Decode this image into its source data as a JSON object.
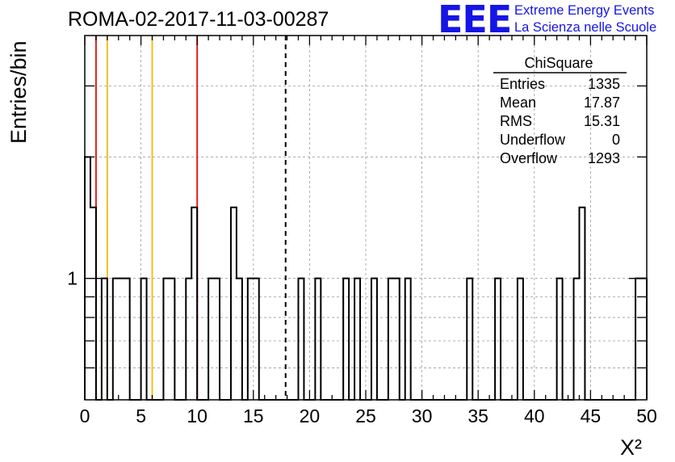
{
  "run_title": "ROMA-02-2017-11-03-00287",
  "logo": {
    "mark": "EEE",
    "line1": "Extreme Energy Events",
    "line2": "La Scienza nelle Scuole",
    "color": "#1515e6"
  },
  "stats": {
    "title": "ChiSquare",
    "rows": [
      {
        "label": "Entries",
        "value": "1335"
      },
      {
        "label": "Mean",
        "value": "17.87"
      },
      {
        "label": "RMS",
        "value": "15.31"
      },
      {
        "label": "Underflow",
        "value": "0"
      },
      {
        "label": "Overflow",
        "value": "1293"
      }
    ]
  },
  "chart_data": {
    "type": "histogram",
    "xlabel": "X²",
    "ylabel": "Entries/bin",
    "xlim": [
      0,
      50
    ],
    "ylim": [
      0.5,
      4
    ],
    "y_scale": "log",
    "y_tick_labels": [
      "1"
    ],
    "x_tick_labels": [
      "0",
      "5",
      "10",
      "15",
      "20",
      "25",
      "30",
      "35",
      "40",
      "45",
      "50"
    ],
    "grid": true,
    "bin_width": 0.5,
    "bins": [
      {
        "x": 0.0,
        "y": 2
      },
      {
        "x": 0.5,
        "y": 1.5
      },
      {
        "x": 1.5,
        "y": 1
      },
      {
        "x": 2.5,
        "y": 1
      },
      {
        "x": 3.0,
        "y": 1
      },
      {
        "x": 3.5,
        "y": 1
      },
      {
        "x": 5.0,
        "y": 1
      },
      {
        "x": 7.0,
        "y": 1
      },
      {
        "x": 7.5,
        "y": 1
      },
      {
        "x": 9.0,
        "y": 1
      },
      {
        "x": 9.5,
        "y": 1.5
      },
      {
        "x": 11.0,
        "y": 1
      },
      {
        "x": 11.5,
        "y": 1
      },
      {
        "x": 13.0,
        "y": 1.5
      },
      {
        "x": 13.5,
        "y": 1
      },
      {
        "x": 14.5,
        "y": 1
      },
      {
        "x": 15.0,
        "y": 1
      },
      {
        "x": 19.0,
        "y": 1
      },
      {
        "x": 20.5,
        "y": 1
      },
      {
        "x": 23.0,
        "y": 1
      },
      {
        "x": 24.0,
        "y": 1
      },
      {
        "x": 25.5,
        "y": 1
      },
      {
        "x": 27.0,
        "y": 1
      },
      {
        "x": 27.5,
        "y": 1
      },
      {
        "x": 28.5,
        "y": 1
      },
      {
        "x": 34.0,
        "y": 1
      },
      {
        "x": 36.5,
        "y": 1
      },
      {
        "x": 38.5,
        "y": 1
      },
      {
        "x": 42.0,
        "y": 1
      },
      {
        "x": 43.5,
        "y": 1
      },
      {
        "x": 44.0,
        "y": 1.5
      },
      {
        "x": 49.0,
        "y": 1
      },
      {
        "x": 49.5,
        "y": 1
      }
    ],
    "reference_lines": [
      {
        "x": 1,
        "color": "#e02020",
        "style": "solid"
      },
      {
        "x": 2,
        "color": "#f0c020",
        "style": "solid"
      },
      {
        "x": 6,
        "color": "#f0c020",
        "style": "solid"
      },
      {
        "x": 10,
        "color": "#e02020",
        "style": "solid"
      },
      {
        "x": 17.87,
        "color": "#000000",
        "style": "dashed"
      }
    ]
  }
}
